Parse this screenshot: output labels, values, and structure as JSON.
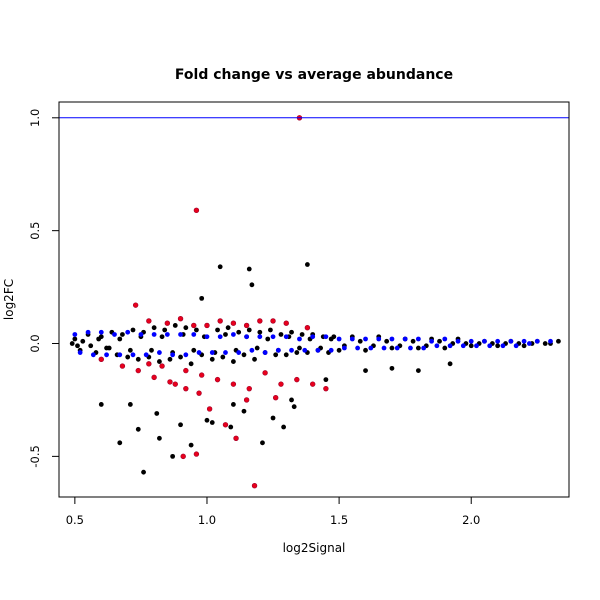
{
  "chart_data": {
    "type": "scatter",
    "title": "Fold change vs average abundance",
    "xlabel": "log2Signal",
    "ylabel": "log2FC",
    "xlim": [
      0.44,
      2.37
    ],
    "ylim": [
      -0.68,
      1.07
    ],
    "x_ticks": [
      0.5,
      1.0,
      1.5,
      2.0
    ],
    "x_tick_labels": [
      "0.5",
      "1.0",
      "1.5",
      "2.0"
    ],
    "y_ticks": [
      -0.5,
      0.0,
      0.5,
      1.0
    ],
    "y_tick_labels": [
      "-0.5",
      "0.0",
      "0.5",
      "1.0"
    ],
    "grid": false,
    "reference_line": {
      "y": 1.0,
      "color": "#0000ff"
    },
    "colors": {
      "black": "#000000",
      "blue": "#0000ff",
      "red": "#e8001c",
      "red_outline": "#a0002a"
    },
    "series": [
      {
        "color": "#000000",
        "x": [
          0.5,
          0.52,
          0.55,
          0.58,
          0.6,
          0.62,
          0.64,
          0.66,
          0.68,
          0.7,
          0.72,
          0.74,
          0.76,
          0.78,
          0.8,
          0.82,
          0.84,
          0.86,
          0.88,
          0.9,
          0.92,
          0.94,
          0.96,
          0.98,
          1.0,
          1.02,
          1.04,
          1.06,
          1.08,
          1.1,
          1.12,
          1.14,
          1.16,
          1.18,
          1.2,
          1.22,
          1.24,
          1.26,
          1.28,
          1.3,
          1.32,
          1.34,
          1.36,
          1.38,
          1.4,
          1.42,
          1.44,
          1.46,
          1.48,
          1.5,
          1.55,
          1.6,
          1.65,
          1.7,
          1.75,
          1.8,
          1.85,
          1.9,
          1.95,
          2.0,
          2.05,
          2.1,
          2.15,
          2.2,
          2.25,
          2.3,
          2.33,
          0.49,
          0.51,
          0.53,
          0.56,
          0.59,
          0.63,
          0.67,
          0.71,
          0.75,
          0.79,
          0.83,
          0.87,
          0.91,
          0.95,
          0.99,
          1.03,
          1.07,
          1.11,
          1.15,
          1.19,
          1.23,
          1.27,
          1.31,
          1.35,
          1.39,
          1.43,
          1.47,
          1.52,
          1.58,
          1.63,
          1.68,
          1.73,
          1.78,
          1.83,
          1.88,
          1.93,
          1.98,
          2.03,
          2.08,
          2.13,
          2.18,
          2.23,
          2.28,
          1.05,
          1.16,
          1.38,
          1.17,
          0.98,
          1.21,
          0.76,
          0.67,
          0.74,
          0.82,
          0.87,
          0.94,
          1.02,
          1.09,
          1.14,
          1.25,
          1.29,
          1.33,
          1.45,
          1.6,
          1.7,
          1.8,
          1.92,
          0.6,
          0.71,
          0.81,
          0.9,
          1.0,
          1.1,
          1.32
        ],
        "y": [
          0.02,
          -0.03,
          0.04,
          -0.04,
          0.03,
          -0.02,
          0.05,
          -0.05,
          0.04,
          -0.06,
          0.06,
          -0.07,
          0.05,
          -0.06,
          0.07,
          -0.08,
          0.06,
          -0.07,
          0.08,
          -0.06,
          0.07,
          -0.09,
          0.06,
          -0.05,
          0.08,
          -0.07,
          0.06,
          -0.06,
          0.07,
          -0.08,
          0.05,
          -0.05,
          0.06,
          -0.07,
          0.05,
          -0.04,
          0.06,
          -0.05,
          0.04,
          -0.05,
          0.05,
          -0.04,
          0.04,
          -0.04,
          0.04,
          -0.03,
          0.03,
          -0.04,
          0.03,
          -0.03,
          0.03,
          -0.03,
          0.03,
          -0.02,
          0.02,
          -0.02,
          0.02,
          -0.02,
          0.02,
          -0.01,
          0.01,
          -0.01,
          0.01,
          -0.01,
          0.01,
          0.0,
          0.01,
          0.0,
          -0.01,
          0.01,
          -0.01,
          0.02,
          -0.02,
          0.02,
          -0.03,
          0.03,
          -0.03,
          0.03,
          -0.04,
          0.04,
          -0.03,
          0.03,
          -0.04,
          0.04,
          -0.03,
          0.03,
          -0.02,
          0.02,
          -0.03,
          0.03,
          -0.02,
          0.02,
          -0.02,
          0.02,
          -0.01,
          0.01,
          -0.01,
          0.01,
          -0.01,
          0.01,
          -0.01,
          0.01,
          0.0,
          0.0,
          0.0,
          0.0,
          0.0,
          0.0,
          0.0,
          0.0,
          0.34,
          0.33,
          0.35,
          0.26,
          0.2,
          -0.44,
          -0.57,
          -0.44,
          -0.38,
          -0.42,
          -0.5,
          -0.45,
          -0.35,
          -0.37,
          -0.3,
          -0.33,
          -0.37,
          -0.28,
          -0.16,
          -0.12,
          -0.11,
          -0.12,
          -0.09,
          -0.27,
          -0.27,
          -0.31,
          -0.36,
          -0.34,
          -0.27,
          -0.25
        ]
      },
      {
        "color": "#0000ff",
        "x": [
          0.5,
          0.55,
          0.6,
          0.65,
          0.7,
          0.75,
          0.8,
          0.85,
          0.9,
          0.95,
          1.0,
          1.05,
          1.1,
          1.15,
          1.2,
          1.25,
          1.3,
          1.35,
          1.4,
          1.45,
          1.5,
          1.55,
          1.6,
          1.65,
          1.7,
          1.75,
          1.8,
          1.85,
          1.9,
          1.95,
          2.0,
          2.05,
          2.1,
          2.15,
          2.2,
          2.25,
          2.3,
          0.52,
          0.57,
          0.62,
          0.67,
          0.72,
          0.77,
          0.82,
          0.87,
          0.92,
          0.97,
          1.02,
          1.07,
          1.12,
          1.17,
          1.22,
          1.27,
          1.32,
          1.37,
          1.42,
          1.47,
          1.52,
          1.57,
          1.62,
          1.67,
          1.72,
          1.77,
          1.82,
          1.87,
          1.92,
          1.97,
          2.02,
          2.07,
          2.12,
          2.17,
          2.22
        ],
        "y": [
          0.04,
          0.05,
          0.05,
          0.04,
          0.05,
          0.04,
          0.04,
          0.04,
          0.04,
          0.04,
          0.03,
          0.03,
          0.04,
          0.03,
          0.03,
          0.03,
          0.03,
          0.02,
          0.03,
          0.03,
          0.02,
          0.02,
          0.02,
          0.02,
          0.02,
          0.02,
          0.02,
          0.01,
          0.02,
          0.01,
          0.01,
          0.01,
          0.01,
          0.01,
          0.01,
          0.01,
          0.01,
          -0.04,
          -0.05,
          -0.05,
          -0.05,
          -0.05,
          -0.05,
          -0.04,
          -0.05,
          -0.05,
          -0.04,
          -0.04,
          -0.04,
          -0.04,
          -0.03,
          -0.04,
          -0.03,
          -0.03,
          -0.03,
          -0.03,
          -0.03,
          -0.02,
          -0.02,
          -0.02,
          -0.02,
          -0.02,
          -0.02,
          -0.02,
          -0.01,
          -0.01,
          -0.01,
          -0.01,
          -0.01,
          -0.01,
          -0.01,
          0.0
        ]
      },
      {
        "color": "#e8001c",
        "x": [
          1.35,
          0.96,
          0.73,
          0.78,
          0.85,
          0.9,
          0.95,
          1.0,
          1.05,
          1.1,
          1.15,
          1.2,
          1.25,
          1.3,
          1.38,
          0.6,
          0.68,
          0.74,
          0.8,
          0.86,
          0.92,
          0.98,
          1.04,
          1.1,
          1.16,
          1.22,
          1.28,
          1.34,
          1.4,
          1.45,
          0.78,
          0.83,
          0.88,
          0.92,
          0.97,
          1.01,
          1.07,
          1.11,
          1.15,
          1.26,
          0.91,
          0.96,
          1.18
        ],
        "y": [
          1.0,
          0.59,
          0.17,
          0.1,
          0.09,
          0.11,
          0.08,
          0.08,
          0.1,
          0.09,
          0.08,
          0.1,
          0.1,
          0.09,
          0.07,
          -0.07,
          -0.1,
          -0.12,
          -0.15,
          -0.17,
          -0.12,
          -0.14,
          -0.16,
          -0.18,
          -0.2,
          -0.13,
          -0.18,
          -0.16,
          -0.18,
          -0.2,
          -0.09,
          -0.1,
          -0.18,
          -0.2,
          -0.22,
          -0.29,
          -0.36,
          -0.42,
          -0.25,
          -0.24,
          -0.5,
          -0.49,
          -0.63
        ]
      }
    ]
  }
}
